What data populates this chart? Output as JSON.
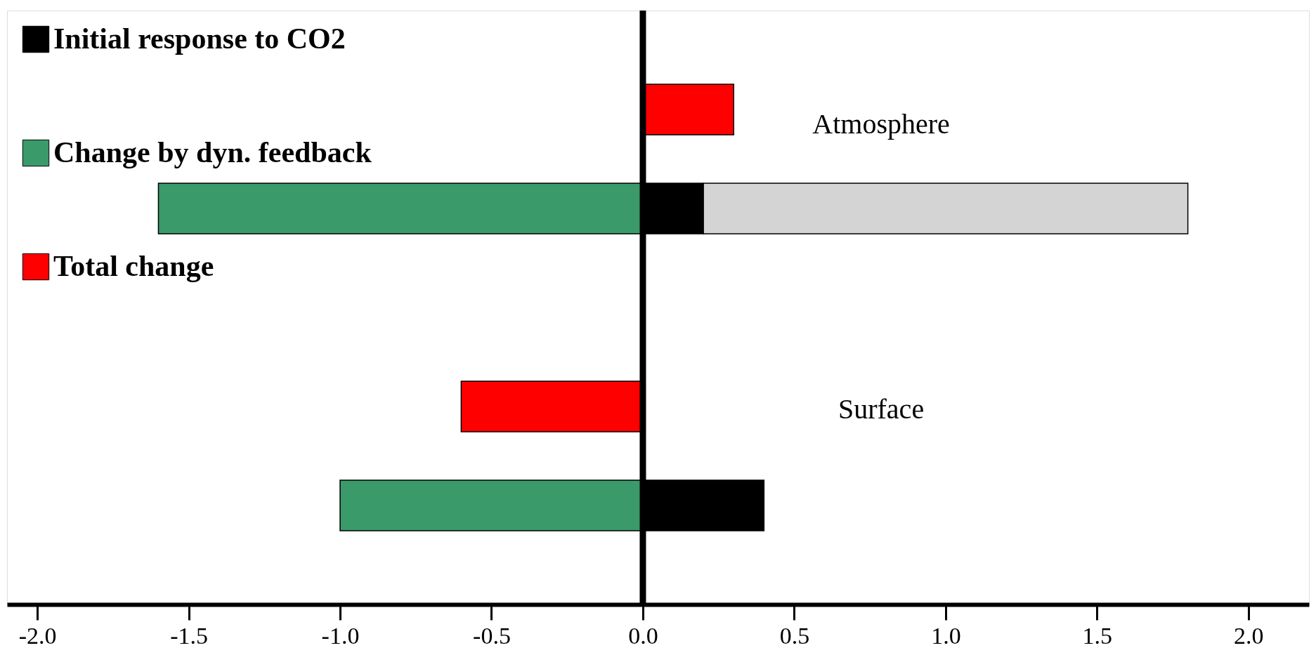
{
  "chart_data": {
    "type": "bar",
    "orientation": "horizontal",
    "stacked": true,
    "categories": [
      null,
      null,
      null,
      null,
      null
    ],
    "series": [
      {
        "name": "Total change",
        "color": "#ff0000",
        "values": [
          0.3,
          null,
          null,
          -0.6,
          null
        ]
      },
      {
        "name": "Change by dyn. feedback",
        "color": "#3a9a6a",
        "values": [
          null,
          -1.6,
          null,
          null,
          -1.0
        ]
      },
      {
        "name": "Initial response to CO2",
        "color": "#000000",
        "values": [
          null,
          0.2,
          null,
          null,
          0.4
        ]
      },
      {
        "color": "#d4d4d4",
        "values": [
          null,
          1.6,
          null,
          null,
          null
        ]
      }
    ],
    "xlim": [
      -2.1,
      2.2
    ],
    "xticks": [
      {
        "value": -2,
        "label": "-2.0"
      },
      {
        "value": -1.5,
        "label": "-1.5"
      },
      {
        "value": -1,
        "label": "-1.0"
      },
      {
        "value": -0.5,
        "label": "-0.5"
      },
      {
        "value": 0,
        "label": "0.0"
      },
      {
        "value": 0.5,
        "label": "0.5"
      },
      {
        "value": 1,
        "label": "1.0"
      },
      {
        "value": 1.5,
        "label": "1.5"
      },
      {
        "value": 2,
        "label": "2.0"
      }
    ],
    "ref_lines": [
      {
        "axis": "x",
        "value": 0,
        "color": "#000000"
      }
    ],
    "annotations": [
      "Atmosphere",
      "Surface"
    ],
    "legend": "top left",
    "grid": false
  }
}
